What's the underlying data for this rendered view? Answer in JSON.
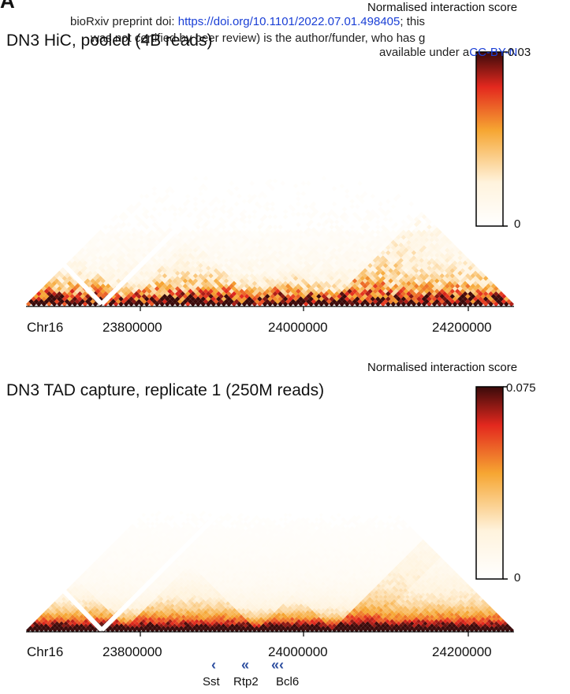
{
  "figure": {
    "panel_letter": "A",
    "preprint": {
      "line1_prefix": "bioRxiv preprint doi: ",
      "line1_link": "https://doi.org/10.1101/2022.07.01.498405",
      "line1_suffix": "; this",
      "line2_prefix": "was not certified by peer review) is the author/funder, who has g",
      "line3_prefix": "available under a",
      "line3_link": "CC-BY-N"
    },
    "panels": [
      {
        "title": "DN3 HiC, pooled (4B reads)",
        "colorbar_title": "Normalised interaction score",
        "colorbar_max": "0.03",
        "colorbar_min": "0",
        "chrom_label": "Chr16",
        "ticks": [
          "23800000",
          "24000000",
          "24200000"
        ]
      },
      {
        "title": "DN3 TAD capture, replicate 1 (250M reads)",
        "colorbar_title": "Normalised interaction score",
        "colorbar_max": "0.075",
        "colorbar_min": "0",
        "chrom_label": "Chr16",
        "ticks": [
          "23800000",
          "24000000",
          "24200000"
        ]
      }
    ],
    "genes": [
      {
        "name": "Sst",
        "strand_glyph": "‹"
      },
      {
        "name": "Rtp2",
        "strand_glyph": "«"
      },
      {
        "name": "Bcl6",
        "strand_glyph": "«‹"
      }
    ],
    "colors": {
      "low": "#fff3dd",
      "mid": "#f6a632",
      "high": "#e3281e",
      "max": "#3a0a0a",
      "gene": "#2e4fa0",
      "link": "#1a3fd6"
    }
  }
}
